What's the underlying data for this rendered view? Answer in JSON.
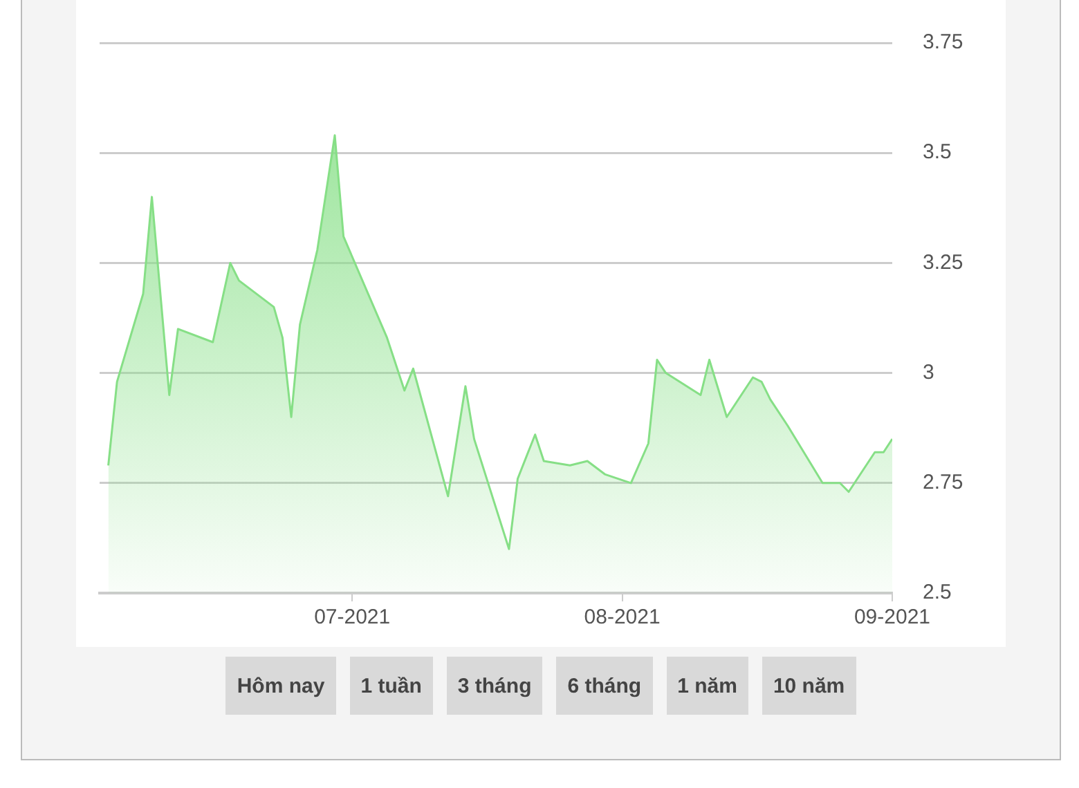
{
  "chart_data": {
    "type": "area",
    "x": [
      "2021-06-03",
      "2021-06-04",
      "2021-06-07",
      "2021-06-08",
      "2021-06-10",
      "2021-06-11",
      "2021-06-15",
      "2021-06-17",
      "2021-06-18",
      "2021-06-22",
      "2021-06-23",
      "2021-06-24",
      "2021-06-25",
      "2021-06-27",
      "2021-06-29",
      "2021-06-30",
      "2021-07-05",
      "2021-07-07",
      "2021-07-08",
      "2021-07-12",
      "2021-07-14",
      "2021-07-15",
      "2021-07-19",
      "2021-07-20",
      "2021-07-22",
      "2021-07-23",
      "2021-07-26",
      "2021-07-28",
      "2021-07-30",
      "2021-08-02",
      "2021-08-04",
      "2021-08-05",
      "2021-08-06",
      "2021-08-10",
      "2021-08-11",
      "2021-08-13",
      "2021-08-16",
      "2021-08-17",
      "2021-08-18",
      "2021-08-20",
      "2021-08-24",
      "2021-08-26",
      "2021-08-27",
      "2021-08-30",
      "2021-08-31",
      "2021-09-01"
    ],
    "series": [
      {
        "color": "#86df86",
        "values": [
          2.79,
          2.98,
          3.18,
          3.4,
          2.95,
          3.1,
          3.07,
          3.25,
          3.21,
          3.15,
          3.08,
          2.9,
          3.11,
          3.28,
          3.54,
          3.31,
          3.08,
          2.96,
          3.01,
          2.72,
          2.97,
          2.85,
          2.6,
          2.76,
          2.86,
          2.8,
          2.79,
          2.8,
          2.77,
          2.75,
          2.84,
          3.03,
          3.0,
          2.95,
          3.03,
          2.9,
          2.99,
          2.98,
          2.94,
          2.88,
          2.75,
          2.75,
          2.73,
          2.82,
          2.82,
          2.85
        ]
      }
    ],
    "xlim": [
      "2021-06-02",
      "2021-09-01"
    ],
    "xticks": [
      {
        "value": "2021-07-01",
        "label": "07-2021"
      },
      {
        "value": "2021-08-01",
        "label": "08-2021"
      },
      {
        "value": "2021-09-01",
        "label": "09-2021"
      }
    ],
    "ylim": [
      2.5,
      3.75
    ],
    "yticks": [
      2.5,
      2.75,
      3,
      3.25,
      3.5,
      3.75
    ],
    "grid": "y",
    "legend": false,
    "annotations": [
      "Hôm nay",
      "1 tuần",
      "3 tháng",
      "6 tháng",
      "1 năm",
      "10 năm"
    ]
  }
}
